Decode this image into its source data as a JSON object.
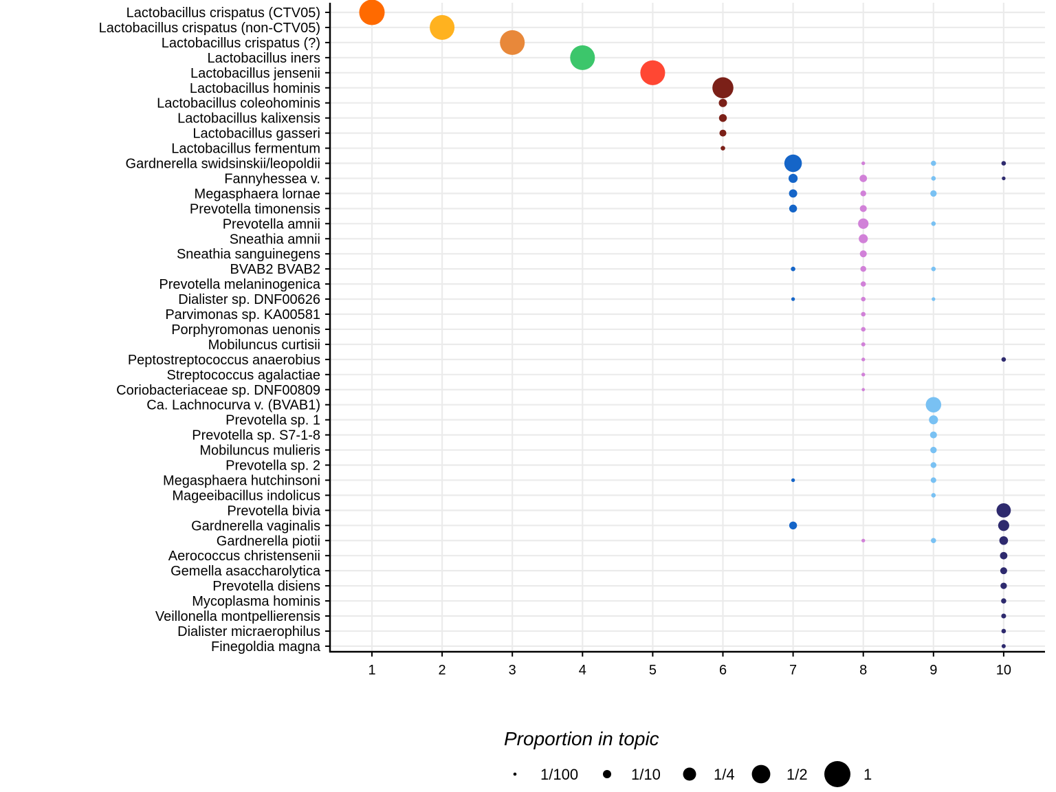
{
  "chart_data": {
    "type": "scatter",
    "x_ticks": [
      1,
      2,
      3,
      4,
      5,
      6,
      7,
      8,
      9,
      10
    ],
    "xlim": [
      0.4,
      10.6
    ],
    "grid": true,
    "legend": {
      "title": "Proportion in topic",
      "placement": "bottom",
      "entries": [
        {
          "label": "1/100",
          "value": 0.01
        },
        {
          "label": "1/10",
          "value": 0.1
        },
        {
          "label": "1/4",
          "value": 0.25
        },
        {
          "label": "1/2",
          "value": 0.5
        },
        {
          "label": "1",
          "value": 1
        }
      ]
    },
    "topic_colors": {
      "1": "#ff6a00",
      "2": "#ffb21f",
      "3": "#e8883a",
      "4": "#3cc66b",
      "5": "#ff4733",
      "6": "#7b2018",
      "7": "#1565c8",
      "8": "#d181d8",
      "9": "#79c1f3",
      "10": "#2e2a6e"
    },
    "categories": [
      "Lactobacillus crispatus (CTV05)",
      "Lactobacillus crispatus (non-CTV05)",
      "Lactobacillus crispatus (?)",
      "Lactobacillus iners",
      "Lactobacillus jensenii",
      "Lactobacillus hominis",
      "Lactobacillus coleohominis",
      "Lactobacillus kalixensis",
      "Lactobacillus gasseri",
      "Lactobacillus fermentum",
      "Gardnerella swidsinskii/leopoldii",
      "Fannyhessea v.",
      "Megasphaera lornae",
      "Prevotella timonensis",
      "Prevotella amnii",
      "Sneathia amnii",
      "Sneathia sanguinegens",
      "BVAB2 BVAB2",
      "Prevotella melaninogenica",
      "Dialister sp. DNF00626",
      "Parvimonas sp. KA00581",
      "Porphyromonas uenonis",
      "Mobiluncus curtisii",
      "Peptostreptococcus anaerobius",
      "Streptococcus agalactiae",
      "Coriobacteriaceae sp. DNF00809",
      "Ca. Lachnocurva v. (BVAB1)",
      "Prevotella sp. 1",
      "Prevotella sp. S7-1-8",
      "Mobiluncus mulieris",
      "Prevotella sp. 2",
      "Megasphaera hutchinsoni",
      "Mageeibacillus indolicus",
      "Prevotella bivia",
      "Gardnerella vaginalis",
      "Gardnerella piotii",
      "Aerococcus christensenii",
      "Gemella asaccharolytica",
      "Prevotella disiens",
      "Mycoplasma hominis",
      "Veillonella montpellierensis",
      "Dialister micraerophilus",
      "Finegoldia magna"
    ],
    "points": [
      {
        "species": "Lactobacillus crispatus (CTV05)",
        "topic": 1,
        "value": 0.95
      },
      {
        "species": "Lactobacillus crispatus (non-CTV05)",
        "topic": 2,
        "value": 0.9
      },
      {
        "species": "Lactobacillus crispatus (?)",
        "topic": 3,
        "value": 0.9
      },
      {
        "species": "Lactobacillus iners",
        "topic": 4,
        "value": 0.9
      },
      {
        "species": "Lactobacillus jensenii",
        "topic": 5,
        "value": 0.9
      },
      {
        "species": "Lactobacillus hominis",
        "topic": 6,
        "value": 0.65
      },
      {
        "species": "Lactobacillus coleohominis",
        "topic": 6,
        "value": 0.1
      },
      {
        "species": "Lactobacillus kalixensis",
        "topic": 6,
        "value": 0.09
      },
      {
        "species": "Lactobacillus gasseri",
        "topic": 6,
        "value": 0.07
      },
      {
        "species": "Lactobacillus fermentum",
        "topic": 6,
        "value": 0.03
      },
      {
        "species": "Gardnerella swidsinskii/leopoldii",
        "topic": 7,
        "value": 0.45
      },
      {
        "species": "Gardnerella swidsinskii/leopoldii",
        "topic": 8,
        "value": 0.02
      },
      {
        "species": "Gardnerella swidsinskii/leopoldii",
        "topic": 9,
        "value": 0.04
      },
      {
        "species": "Gardnerella swidsinskii/leopoldii",
        "topic": 10,
        "value": 0.03
      },
      {
        "species": "Fannyhessea v.",
        "topic": 7,
        "value": 0.12
      },
      {
        "species": "Fannyhessea v.",
        "topic": 8,
        "value": 0.08
      },
      {
        "species": "Fannyhessea v.",
        "topic": 9,
        "value": 0.03
      },
      {
        "species": "Fannyhessea v.",
        "topic": 10,
        "value": 0.02
      },
      {
        "species": "Megasphaera lornae",
        "topic": 7,
        "value": 0.1
      },
      {
        "species": "Megasphaera lornae",
        "topic": 8,
        "value": 0.05
      },
      {
        "species": "Megasphaera lornae",
        "topic": 9,
        "value": 0.06
      },
      {
        "species": "Prevotella timonensis",
        "topic": 7,
        "value": 0.09
      },
      {
        "species": "Prevotella timonensis",
        "topic": 8,
        "value": 0.07
      },
      {
        "species": "Prevotella amnii",
        "topic": 8,
        "value": 0.16
      },
      {
        "species": "Prevotella amnii",
        "topic": 9,
        "value": 0.03
      },
      {
        "species": "Sneathia amnii",
        "topic": 8,
        "value": 0.12
      },
      {
        "species": "Sneathia sanguinegens",
        "topic": 8,
        "value": 0.07
      },
      {
        "species": "BVAB2 BVAB2",
        "topic": 7,
        "value": 0.03
      },
      {
        "species": "BVAB2 BVAB2",
        "topic": 8,
        "value": 0.05
      },
      {
        "species": "BVAB2 BVAB2",
        "topic": 9,
        "value": 0.03
      },
      {
        "species": "Prevotella melaninogenica",
        "topic": 8,
        "value": 0.04
      },
      {
        "species": "Dialister sp. DNF00626",
        "topic": 7,
        "value": 0.02
      },
      {
        "species": "Dialister sp. DNF00626",
        "topic": 8,
        "value": 0.03
      },
      {
        "species": "Dialister sp. DNF00626",
        "topic": 9,
        "value": 0.02
      },
      {
        "species": "Parvimonas sp. KA00581",
        "topic": 8,
        "value": 0.03
      },
      {
        "species": "Porphyromonas uenonis",
        "topic": 8,
        "value": 0.03
      },
      {
        "species": "Mobiluncus curtisii",
        "topic": 8,
        "value": 0.025
      },
      {
        "species": "Peptostreptococcus anaerobius",
        "topic": 8,
        "value": 0.02
      },
      {
        "species": "Peptostreptococcus anaerobius",
        "topic": 10,
        "value": 0.03
      },
      {
        "species": "Streptococcus agalactiae",
        "topic": 8,
        "value": 0.02
      },
      {
        "species": "Coriobacteriaceae sp. DNF00809",
        "topic": 8,
        "value": 0.015
      },
      {
        "species": "Ca. Lachnocurva v. (BVAB1)",
        "topic": 9,
        "value": 0.35
      },
      {
        "species": "Prevotella sp. 1",
        "topic": 9,
        "value": 0.12
      },
      {
        "species": "Prevotella sp. S7-1-8",
        "topic": 9,
        "value": 0.07
      },
      {
        "species": "Mobiluncus mulieris",
        "topic": 9,
        "value": 0.06
      },
      {
        "species": "Prevotella sp. 2",
        "topic": 9,
        "value": 0.05
      },
      {
        "species": "Megasphaera hutchinsoni",
        "topic": 7,
        "value": 0.02
      },
      {
        "species": "Megasphaera hutchinsoni",
        "topic": 9,
        "value": 0.045
      },
      {
        "species": "Mageeibacillus indolicus",
        "topic": 9,
        "value": 0.03
      },
      {
        "species": "Prevotella bivia",
        "topic": 10,
        "value": 0.3
      },
      {
        "species": "Gardnerella vaginalis",
        "topic": 7,
        "value": 0.09
      },
      {
        "species": "Gardnerella vaginalis",
        "topic": 10,
        "value": 0.18
      },
      {
        "species": "Gardnerella piotii",
        "topic": 8,
        "value": 0.02
      },
      {
        "species": "Gardnerella piotii",
        "topic": 9,
        "value": 0.04
      },
      {
        "species": "Gardnerella piotii",
        "topic": 10,
        "value": 0.11
      },
      {
        "species": "Aerococcus christensenii",
        "topic": 10,
        "value": 0.08
      },
      {
        "species": "Gemella asaccharolytica",
        "topic": 10,
        "value": 0.07
      },
      {
        "species": "Prevotella disiens",
        "topic": 10,
        "value": 0.06
      },
      {
        "species": "Mycoplasma hominis",
        "topic": 10,
        "value": 0.04
      },
      {
        "species": "Veillonella montpellierensis",
        "topic": 10,
        "value": 0.035
      },
      {
        "species": "Dialister micraerophilus",
        "topic": 10,
        "value": 0.03
      },
      {
        "species": "Finegoldia magna",
        "topic": 10,
        "value": 0.025
      }
    ]
  }
}
